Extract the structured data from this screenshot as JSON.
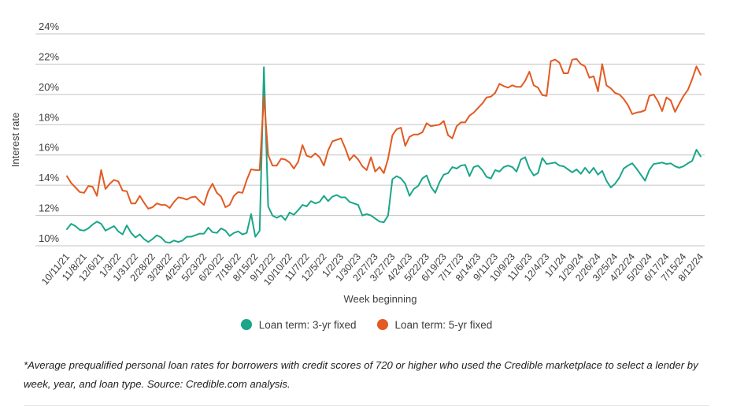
{
  "chart": {
    "ylabel": "Interest rate",
    "xlabel": "Week beginning",
    "legend": [
      {
        "label": "Loan term: 3-yr fixed",
        "color": "#1aa689"
      },
      {
        "label": "Loan term: 5-yr fixed",
        "color": "#e25a22"
      }
    ],
    "footnote": "*Average prequalified personal loan rates for borrowers with credit scores of 720 or higher who used the Credible marketplace to select a lender by week, year, and loan type. Source: Credible.com analysis.",
    "colors": {
      "gridline": "#c4c4c4",
      "tick_text": "#3e3e3e",
      "axis_title": "#3e3e3e",
      "series_3yr": "#1aa689",
      "series_5yr": "#e25a22"
    }
  },
  "chart_data": {
    "type": "line",
    "title": "",
    "xlabel": "Week beginning",
    "ylabel": "Interest rate",
    "ylim": [
      10,
      24
    ],
    "yticks": [
      10,
      12,
      14,
      16,
      18,
      20,
      22,
      24
    ],
    "ytick_suffix": "%",
    "grid": true,
    "legend_position": "bottom",
    "x_tick_labels": [
      "10/11/21",
      "11/8/21",
      "12/6/21",
      "1/3/22",
      "1/31/22",
      "2/28/22",
      "3/28/22",
      "4/25/22",
      "5/23/22",
      "6/20/22",
      "7/18/22",
      "8/15/22",
      "9/12/22",
      "10/10/22",
      "11/7/22",
      "12/5/22",
      "1/2/23",
      "1/30/23",
      "2/27/23",
      "3/27/23",
      "4/24/23",
      "5/22/23",
      "6/19/23",
      "7/17/23",
      "8/14/23",
      "9/11/23",
      "10/9/23",
      "11/6/23",
      "12/4/23",
      "1/1/24",
      "1/29/24",
      "2/26/24",
      "3/25/24",
      "4/22/24",
      "5/20/24",
      "6/17/24",
      "7/15/24",
      "8/12/24"
    ],
    "weeks_per_tick": 4,
    "series": [
      {
        "name": "Loan term: 3-yr fixed",
        "color": "#1aa689",
        "values": [
          11.1,
          11.45,
          11.3,
          11.05,
          11.0,
          11.15,
          11.4,
          11.6,
          11.45,
          11.0,
          11.15,
          11.3,
          10.95,
          10.75,
          11.35,
          10.85,
          10.55,
          10.75,
          10.45,
          10.25,
          10.45,
          10.7,
          10.55,
          10.25,
          10.2,
          10.35,
          10.25,
          10.35,
          10.6,
          10.6,
          10.7,
          10.8,
          10.8,
          11.2,
          10.9,
          10.85,
          11.15,
          11.0,
          10.65,
          10.85,
          10.95,
          10.75,
          10.85,
          12.1,
          10.6,
          11.0,
          21.8,
          12.6,
          12.0,
          11.85,
          12.0,
          11.7,
          12.2,
          12.05,
          12.35,
          12.7,
          12.6,
          12.95,
          12.8,
          12.9,
          13.3,
          12.95,
          13.25,
          13.35,
          13.2,
          13.2,
          12.9,
          12.8,
          12.7,
          12.0,
          12.1,
          12.0,
          11.8,
          11.6,
          11.55,
          12.0,
          14.4,
          14.6,
          14.45,
          14.1,
          13.3,
          13.75,
          13.95,
          14.45,
          14.65,
          13.9,
          13.5,
          14.2,
          14.7,
          14.8,
          15.2,
          15.1,
          15.3,
          15.35,
          14.6,
          15.2,
          15.3,
          15.0,
          14.55,
          14.45,
          15.0,
          14.9,
          15.2,
          15.3,
          15.2,
          14.9,
          15.7,
          15.85,
          15.1,
          14.65,
          14.8,
          15.8,
          15.4,
          15.45,
          15.5,
          15.3,
          15.25,
          15.05,
          14.85,
          15.05,
          14.75,
          15.15,
          14.8,
          15.15,
          14.7,
          14.95,
          14.3,
          13.85,
          14.1,
          14.5,
          15.1,
          15.3,
          15.45,
          15.1,
          14.7,
          14.3,
          15.0,
          15.4,
          15.45,
          15.5,
          15.4,
          15.45,
          15.25,
          15.15,
          15.25,
          15.45,
          15.6,
          16.35,
          15.9
        ]
      },
      {
        "name": "Loan term: 5-yr fixed",
        "color": "#e25a22",
        "values": [
          14.6,
          14.15,
          13.85,
          13.55,
          13.5,
          13.95,
          13.9,
          13.3,
          15.0,
          13.75,
          14.1,
          14.35,
          14.25,
          13.65,
          13.6,
          12.8,
          12.8,
          13.3,
          12.85,
          12.45,
          12.55,
          12.8,
          12.7,
          12.7,
          12.5,
          12.9,
          13.2,
          13.15,
          13.05,
          13.2,
          13.25,
          12.95,
          12.7,
          13.6,
          14.1,
          13.5,
          13.25,
          12.55,
          12.7,
          13.3,
          13.55,
          13.5,
          14.35,
          15.05,
          15.0,
          15.0,
          19.9,
          16.0,
          15.3,
          15.3,
          15.75,
          15.7,
          15.5,
          15.1,
          15.55,
          16.65,
          15.95,
          15.85,
          16.1,
          15.85,
          15.3,
          16.3,
          16.9,
          17.0,
          17.1,
          16.45,
          15.65,
          16.0,
          15.7,
          15.25,
          15.0,
          15.85,
          14.9,
          15.2,
          14.8,
          15.75,
          17.3,
          17.7,
          17.8,
          16.6,
          17.2,
          17.35,
          17.35,
          17.5,
          18.1,
          17.9,
          17.95,
          18.0,
          18.25,
          17.3,
          17.1,
          17.9,
          18.15,
          18.15,
          18.6,
          18.8,
          19.1,
          19.4,
          19.8,
          19.85,
          20.1,
          20.7,
          20.55,
          20.45,
          20.6,
          20.5,
          20.5,
          20.9,
          21.5,
          20.6,
          20.45,
          19.95,
          19.9,
          22.2,
          22.3,
          22.1,
          21.4,
          21.4,
          22.3,
          22.35,
          22.0,
          21.85,
          21.1,
          21.2,
          20.2,
          22.0,
          20.6,
          20.4,
          20.1,
          20.0,
          19.7,
          19.3,
          18.7,
          18.8,
          18.85,
          18.95,
          19.9,
          20.0,
          19.55,
          18.9,
          19.8,
          19.6,
          18.85,
          19.4,
          19.9,
          20.3,
          21.0,
          21.85,
          21.3
        ]
      }
    ]
  }
}
